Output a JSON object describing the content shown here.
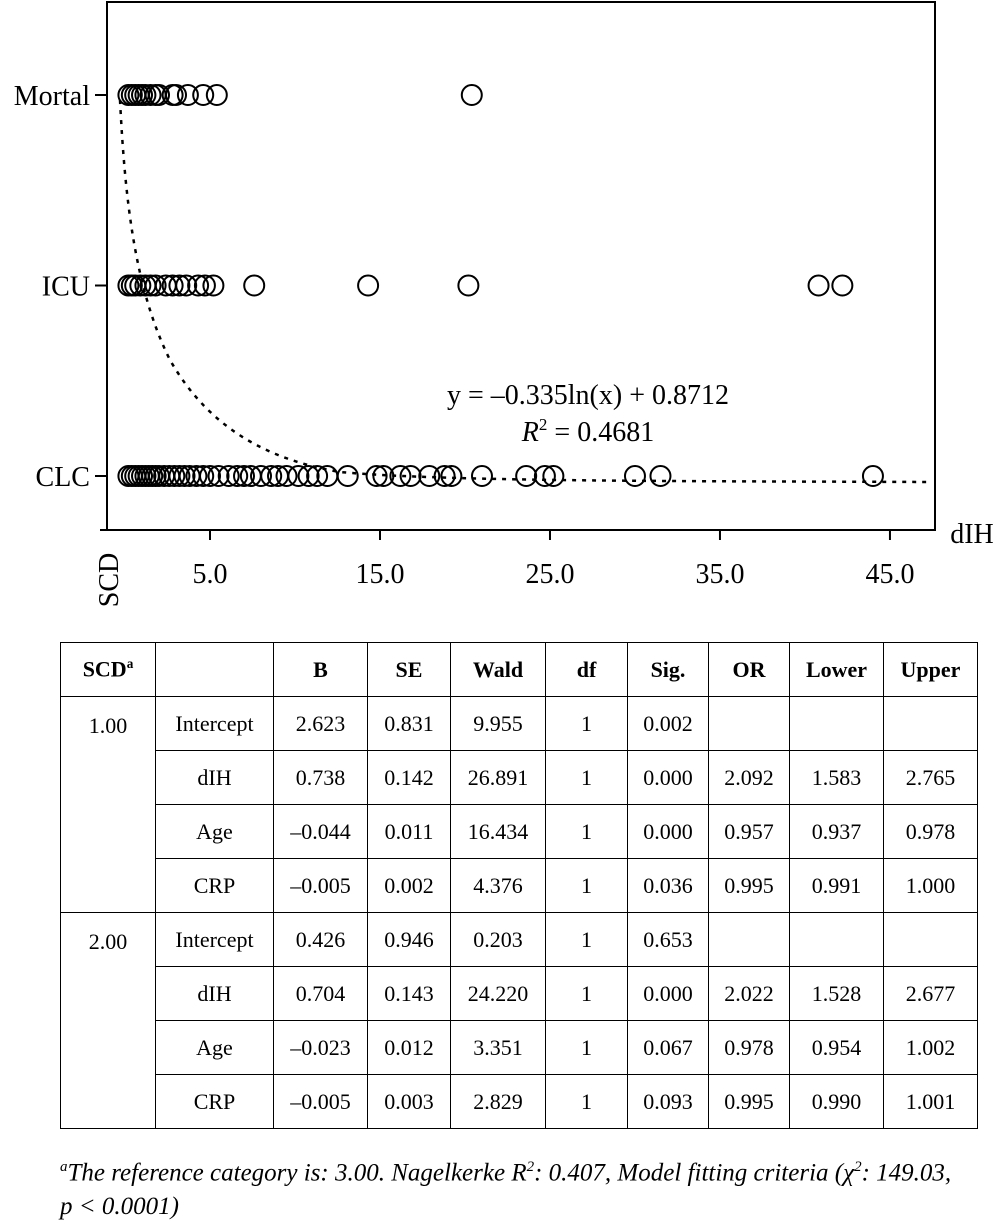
{
  "chart_data": {
    "type": "scatter",
    "x_label": "dIH",
    "y_label": "SCD",
    "xlim": [
      -1.06,
      47.65
    ],
    "xticks": [
      {
        "value": 5,
        "label": "5.0"
      },
      {
        "value": 15,
        "label": "15.0"
      },
      {
        "value": 25,
        "label": "25.0"
      },
      {
        "value": 35,
        "label": "35.0"
      },
      {
        "value": 45,
        "label": "45.0"
      }
    ],
    "categories": [
      "CLC",
      "ICU",
      "Mortal"
    ],
    "color": "#000000",
    "series": [
      {
        "x": [
          0.2,
          0.4,
          0.6,
          0.8,
          1.0,
          1.2,
          1.4,
          1.6,
          1.8,
          2.0,
          2.3,
          2.6,
          2.9,
          3.2,
          3.5,
          3.8,
          4.2,
          4.6,
          5.0,
          5.5,
          6.1,
          6.6,
          7.0,
          7.4,
          8.0,
          8.6,
          9.0,
          9.5,
          10.2,
          10.8,
          11.3,
          11.9,
          13.1,
          14.8,
          15.2,
          16.2,
          16.8,
          17.9,
          18.8,
          19.2,
          21.0,
          23.6,
          24.7,
          25.2,
          30.0,
          31.5,
          44.0
        ]
      },
      {
        "x": [
          0.2,
          0.4,
          0.6,
          0.9,
          1.2,
          1.5,
          1.8,
          2.4,
          2.8,
          3.2,
          3.6,
          4.3,
          4.7,
          5.2,
          7.6,
          14.3,
          20.2,
          40.8,
          42.2
        ]
      },
      {
        "x": [
          0.2,
          0.4,
          0.6,
          0.8,
          1.0,
          1.2,
          1.5,
          1.8,
          2.0,
          2.8,
          3.0,
          3.7,
          4.6,
          5.4,
          20.4
        ]
      }
    ],
    "annotation": {
      "equation": "y = –0.335ln(x) + 0.8712",
      "r2_symbol": "R",
      "r2_sup": "2",
      "r2_text": " = 0.4681"
    }
  },
  "table": {
    "header": [
      {
        "text": "SCD",
        "sup": "a"
      },
      null,
      "B",
      "SE",
      "Wald",
      "df",
      "Sig.",
      "OR",
      "Lower",
      "Upper"
    ],
    "groups": [
      {
        "scd": "1.00",
        "rows": [
          [
            "Intercept",
            "2.623",
            "0.831",
            "9.955",
            "1",
            "0.002",
            null,
            null,
            null
          ],
          [
            "dIH",
            "0.738",
            "0.142",
            "26.891",
            "1",
            "0.000",
            "2.092",
            "1.583",
            "2.765"
          ],
          [
            "Age",
            "–0.044",
            "0.011",
            "16.434",
            "1",
            "0.000",
            "0.957",
            "0.937",
            "0.978"
          ],
          [
            "CRP",
            "–0.005",
            "0.002",
            "4.376",
            "1",
            "0.036",
            "0.995",
            "0.991",
            "1.000"
          ]
        ]
      },
      {
        "scd": "2.00",
        "rows": [
          [
            "Intercept",
            "0.426",
            "0.946",
            "0.203",
            "1",
            "0.653",
            null,
            null,
            null
          ],
          [
            "dIH",
            "0.704",
            "0.143",
            "24.220",
            "1",
            "0.000",
            "2.022",
            "1.528",
            "2.677"
          ],
          [
            "Age",
            "–0.023",
            "0.012",
            "3.351",
            "1",
            "0.067",
            "0.978",
            "0.954",
            "1.002"
          ],
          [
            "CRP",
            "–0.005",
            "0.003",
            "2.829",
            "1",
            "0.093",
            "0.995",
            "0.990",
            "1.001"
          ]
        ]
      }
    ]
  },
  "footnote": [
    {
      "text": "a",
      "sup": true
    },
    {
      "text": "The reference category is: 3.00. Nagelkerke R"
    },
    {
      "text": "2",
      "sup": true
    },
    {
      "text": ": 0.407, Model fitting criteria (χ"
    },
    {
      "text": "2",
      "sup": true
    },
    {
      "text": ": 149.03, p < 0.0001)"
    }
  ]
}
